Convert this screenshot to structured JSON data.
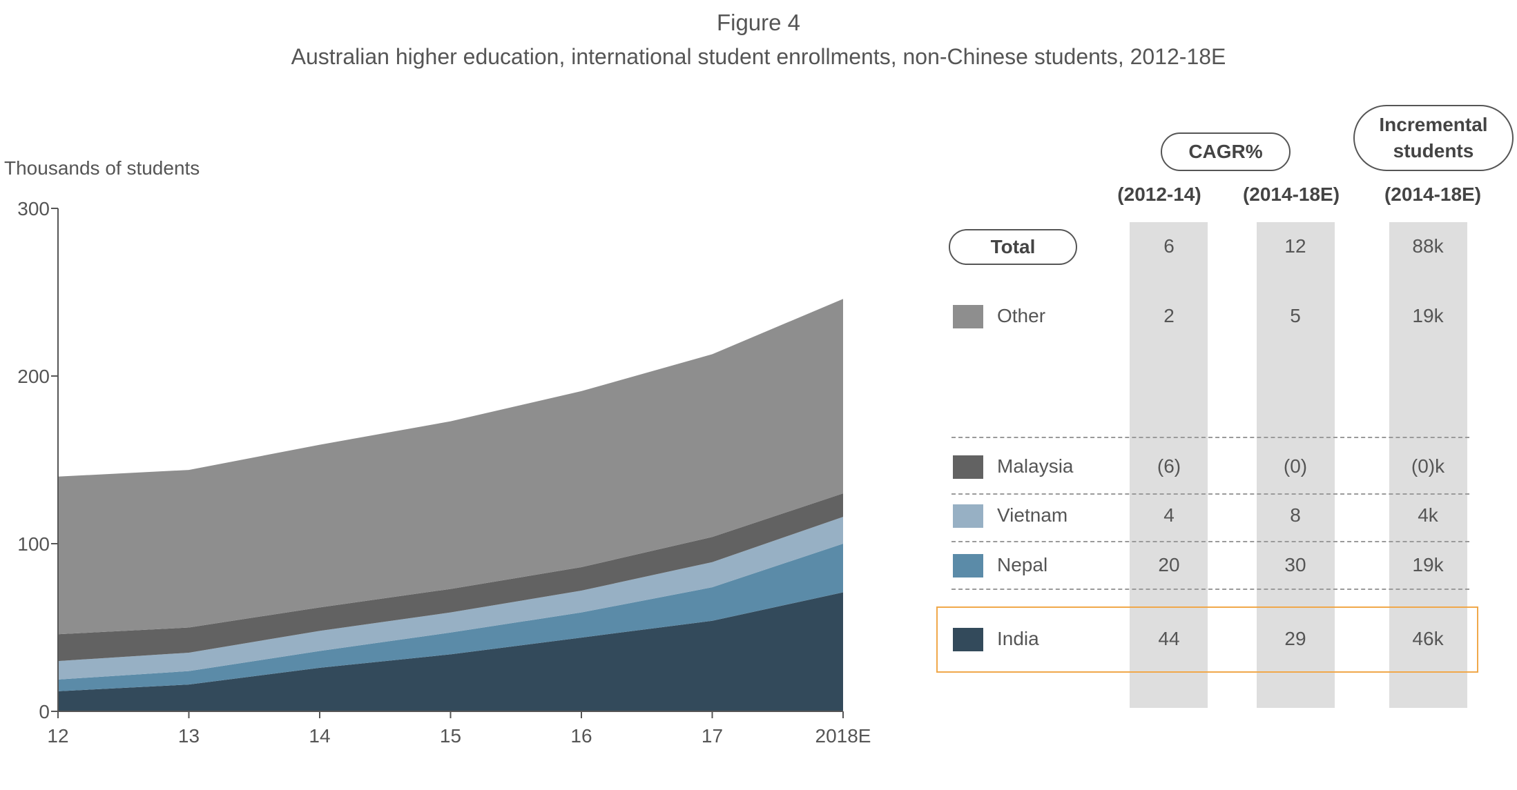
{
  "figure": {
    "title": "Figure 4",
    "subtitle": "Australian higher education, international student enrollments, non-Chinese students, 2012-18E"
  },
  "chart_data": {
    "type": "area",
    "stacked": true,
    "ylabel": "Thousands of students",
    "xlabel": "",
    "ylim": [
      0,
      300
    ],
    "yticks": [
      "0",
      "100",
      "200",
      "300"
    ],
    "categories": [
      "12",
      "13",
      "14",
      "15",
      "16",
      "17",
      "2018E"
    ],
    "series": [
      {
        "name": "India",
        "color": "#334a5b",
        "values": [
          12,
          16,
          26,
          34,
          44,
          54,
          71
        ]
      },
      {
        "name": "Nepal",
        "color": "#5b8ba8",
        "values": [
          7,
          8,
          10,
          13,
          15,
          20,
          29
        ]
      },
      {
        "name": "Vietnam",
        "color": "#97b0c4",
        "values": [
          11,
          11,
          12,
          12,
          13,
          15,
          16
        ]
      },
      {
        "name": "Malaysia",
        "color": "#626262",
        "values": [
          16,
          15,
          14,
          14,
          14,
          15,
          14
        ]
      },
      {
        "name": "Other",
        "color": "#8e8e8e",
        "values": [
          94,
          94,
          97,
          100,
          105,
          109,
          116
        ]
      }
    ],
    "grid": false
  },
  "table": {
    "cagr_pill": "CAGR%",
    "incremental_pill_line1": "Incremental",
    "incremental_pill_line2": "students",
    "col_headers": [
      "(2012-14)",
      "(2014-18E)",
      "(2014-18E)"
    ],
    "total_label": "Total",
    "total_values": [
      "6",
      "12",
      "88k"
    ],
    "rows": [
      {
        "label": "Other",
        "color": "#8e8e8e",
        "values": [
          "2",
          "5",
          "19k"
        ]
      },
      {
        "label": "Malaysia",
        "color": "#626262",
        "values": [
          "(6)",
          "(0)",
          "(0)k"
        ]
      },
      {
        "label": "Vietnam",
        "color": "#97b0c4",
        "values": [
          "4",
          "8",
          "4k"
        ]
      },
      {
        "label": "Nepal",
        "color": "#5b8ba8",
        "values": [
          "20",
          "30",
          "19k"
        ]
      },
      {
        "label": "India",
        "color": "#334a5b",
        "values": [
          "44",
          "29",
          "46k"
        ]
      }
    ],
    "highlight_color": "#f0a84a"
  }
}
